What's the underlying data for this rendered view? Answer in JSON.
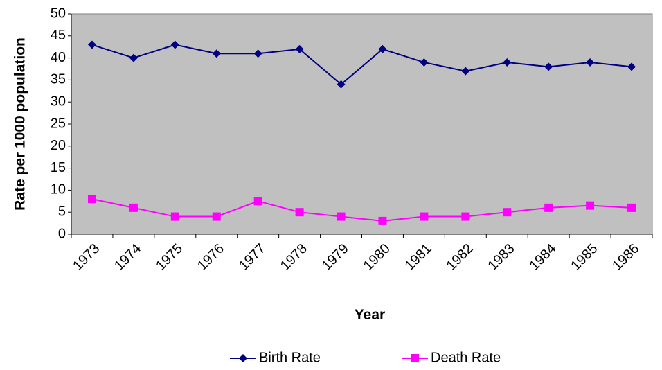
{
  "chart_data": {
    "type": "line",
    "x_label": "Year",
    "y_label": "Rate per 1000 population",
    "categories": [
      "1973",
      "1974",
      "1975",
      "1976",
      "1977",
      "1978",
      "1979",
      "1980",
      "1981",
      "1982",
      "1983",
      "1984",
      "1985",
      "1986"
    ],
    "series": [
      {
        "name": "Birth Rate",
        "color": "#000080",
        "marker": "diamond",
        "values": [
          43,
          40,
          43,
          41,
          41,
          42,
          34,
          42,
          39,
          37,
          39,
          38,
          39,
          38
        ]
      },
      {
        "name": "Death Rate",
        "color": "#FF00FF",
        "marker": "square",
        "values": [
          8,
          6,
          4,
          4,
          7.5,
          5,
          4,
          3,
          4,
          4,
          5,
          6,
          6.5,
          6
        ]
      }
    ],
    "ylim": [
      0,
      50
    ],
    "yticks": [
      0,
      5,
      10,
      15,
      20,
      25,
      30,
      35,
      40,
      45,
      50
    ],
    "grid": false,
    "legend": "bottom",
    "plot_background": "#C0C0C0"
  }
}
